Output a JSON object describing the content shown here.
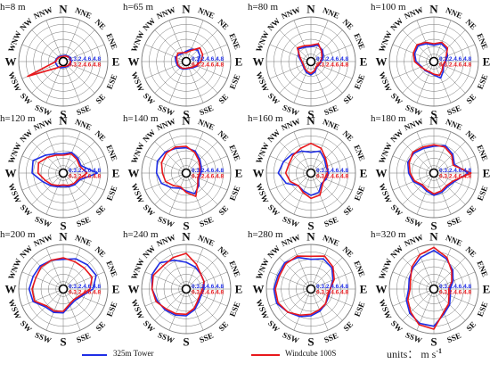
{
  "directions": [
    "N",
    "NNE",
    "NE",
    "ENE",
    "E",
    "ESE",
    "SE",
    "SSE",
    "S",
    "SSW",
    "SW",
    "WSW",
    "W",
    "WNW",
    "NW",
    "NNW"
  ],
  "ring_label": "0.3.2.4.6.4.8",
  "legend": {
    "items": [
      {
        "label": "325m Tower",
        "color": "#1f2ee6"
      },
      {
        "label": "Windcube 100S",
        "color": "#e8181c"
      }
    ],
    "units_label": "units： m s",
    "units_sup": "-1"
  },
  "colors": {
    "tower": "#1f2ee6",
    "windcube": "#e8181c",
    "grid": "#777777"
  },
  "chart_data": [
    {
      "type": "radar",
      "title": "h=8 m",
      "categories": [
        "N",
        "NNE",
        "NE",
        "ENE",
        "E",
        "ESE",
        "SE",
        "SSE",
        "S",
        "SSW",
        "SW",
        "WSW",
        "W",
        "WNW",
        "NW",
        "NNW"
      ],
      "series": [
        {
          "name": "325m Tower",
          "values": [
            0.8,
            0.9,
            1.0,
            1.1,
            1.1,
            1.0,
            0.9,
            0.8,
            0.8,
            0.9,
            1.0,
            1.0,
            1.1,
            1.0,
            0.9,
            0.8
          ]
        },
        {
          "name": "Windcube 100S",
          "values": [
            0.7,
            0.8,
            0.9,
            1.0,
            1.0,
            0.9,
            0.8,
            0.7,
            0.6,
            0.7,
            1.2,
            5.2,
            1.0,
            0.9,
            0.8,
            0.7
          ]
        }
      ],
      "rmax": 6
    },
    {
      "type": "radar",
      "title": "h=65 m",
      "categories": [
        "N",
        "NNE",
        "NE",
        "ENE",
        "E",
        "ESE",
        "SE",
        "SSE",
        "S",
        "SSW",
        "SW",
        "WSW",
        "W",
        "WNW",
        "NW",
        "NNW"
      ],
      "series": [
        {
          "name": "325m Tower",
          "values": [
            1.4,
            1.8,
            2.2,
            2.0,
            1.6,
            1.6,
            1.2,
            1.0,
            1.0,
            1.1,
            1.2,
            1.3,
            1.4,
            1.6,
            1.3,
            1.2
          ]
        },
        {
          "name": "Windcube 100S",
          "values": [
            1.2,
            1.6,
            2.6,
            2.4,
            2.0,
            1.4,
            1.1,
            0.9,
            0.9,
            1.0,
            1.1,
            1.2,
            1.2,
            1.4,
            1.6,
            1.3
          ]
        }
      ],
      "rmax": 6
    },
    {
      "type": "radar",
      "title": "h=80 m",
      "categories": [
        "N",
        "NNE",
        "NE",
        "ENE",
        "E",
        "ESE",
        "SE",
        "SSE",
        "S",
        "SSW",
        "SW",
        "WSW",
        "W",
        "WNW",
        "NW",
        "NNW"
      ],
      "series": [
        {
          "name": "325m Tower",
          "values": [
            2.0,
            2.4,
            2.2,
            1.8,
            1.4,
            1.2,
            1.1,
            1.5,
            1.8,
            1.6,
            1.3,
            1.2,
            1.3,
            1.8,
            2.4,
            2.1
          ]
        },
        {
          "name": "Windcube 100S",
          "values": [
            2.2,
            2.6,
            2.0,
            1.6,
            1.3,
            1.1,
            1.0,
            1.3,
            1.6,
            1.4,
            1.2,
            1.1,
            1.2,
            1.6,
            2.6,
            2.3
          ]
        }
      ],
      "rmax": 6
    },
    {
      "type": "radar",
      "title": "h=100 m",
      "categories": [
        "N",
        "NNE",
        "NE",
        "ENE",
        "E",
        "ESE",
        "SE",
        "SSE",
        "S",
        "SSW",
        "SW",
        "WSW",
        "W",
        "WNW",
        "NW",
        "NNW"
      ],
      "series": [
        {
          "name": "325m Tower",
          "values": [
            2.2,
            2.6,
            2.4,
            2.0,
            1.6,
            1.4,
            1.8,
            2.4,
            1.8,
            1.6,
            1.7,
            1.8,
            2.4,
            2.8,
            3.0,
            2.6
          ]
        },
        {
          "name": "Windcube 100S",
          "values": [
            2.4,
            2.8,
            2.6,
            1.8,
            1.5,
            1.3,
            1.6,
            2.0,
            1.7,
            1.5,
            1.6,
            1.9,
            2.6,
            3.0,
            3.2,
            2.8
          ]
        }
      ],
      "rmax": 6
    },
    {
      "type": "radar",
      "title": "h=120 m",
      "categories": [
        "N",
        "NNE",
        "NE",
        "ENE",
        "E",
        "ESE",
        "SE",
        "SSE",
        "S",
        "SSW",
        "SW",
        "WSW",
        "W",
        "WNW",
        "NW",
        "NNW"
      ],
      "series": [
        {
          "name": "325m Tower",
          "values": [
            2.6,
            3.0,
            2.8,
            2.6,
            4.6,
            2.4,
            2.2,
            2.0,
            1.8,
            2.0,
            2.4,
            3.0,
            4.2,
            4.4,
            3.4,
            2.8
          ]
        },
        {
          "name": "Windcube 100S",
          "values": [
            2.4,
            2.8,
            2.6,
            2.4,
            3.2,
            2.2,
            2.0,
            1.8,
            1.6,
            1.8,
            2.2,
            2.6,
            3.4,
            3.6,
            3.0,
            2.6
          ]
        }
      ],
      "rmax": 6
    },
    {
      "type": "radar",
      "title": "h=140 m",
      "categories": [
        "N",
        "NNE",
        "NE",
        "ENE",
        "E",
        "ESE",
        "SE",
        "SSE",
        "S",
        "SSW",
        "SW",
        "WSW",
        "W",
        "WNW",
        "NW",
        "NNW"
      ],
      "series": [
        {
          "name": "325m Tower",
          "values": [
            3.4,
            3.2,
            2.6,
            2.2,
            2.0,
            1.8,
            2.4,
            3.0,
            2.4,
            2.2,
            2.8,
            3.6,
            4.0,
            4.2,
            4.0,
            3.6
          ]
        },
        {
          "name": "Windcube 100S",
          "values": [
            3.6,
            3.0,
            2.4,
            2.0,
            1.8,
            1.7,
            2.2,
            3.4,
            2.6,
            2.0,
            2.4,
            3.0,
            3.2,
            3.6,
            3.8,
            3.8
          ]
        }
      ],
      "rmax": 6
    },
    {
      "type": "radar",
      "title": "h=160 m",
      "categories": [
        "N",
        "NNE",
        "NE",
        "ENE",
        "E",
        "ESE",
        "SE",
        "SSE",
        "S",
        "SSW",
        "SW",
        "WSW",
        "W",
        "WNW",
        "NW",
        "NNW"
      ],
      "series": [
        {
          "name": "325m Tower",
          "values": [
            2.8,
            3.2,
            2.6,
            2.2,
            2.4,
            2.2,
            2.0,
            2.8,
            3.0,
            2.6,
            2.4,
            3.6,
            4.4,
            4.0,
            3.6,
            3.2
          ]
        },
        {
          "name": "Windcube 100S",
          "values": [
            4.0,
            3.6,
            2.8,
            2.4,
            2.2,
            2.0,
            2.2,
            3.2,
            3.4,
            2.8,
            2.4,
            3.0,
            3.4,
            3.2,
            3.4,
            3.6
          ]
        }
      ],
      "rmax": 6
    },
    {
      "type": "radar",
      "title": "h=180 m",
      "categories": [
        "N",
        "NNE",
        "NE",
        "ENE",
        "E",
        "ESE",
        "SE",
        "SSE",
        "S",
        "SSW",
        "SW",
        "WSW",
        "W",
        "WNW",
        "NW",
        "NNW"
      ],
      "series": [
        {
          "name": "325m Tower",
          "values": [
            3.6,
            4.0,
            3.6,
            3.0,
            4.6,
            3.0,
            2.6,
            2.8,
            3.0,
            2.6,
            2.4,
            3.0,
            3.4,
            3.8,
            3.8,
            3.6
          ]
        },
        {
          "name": "Windcube 100S",
          "values": [
            3.8,
            3.8,
            3.4,
            2.8,
            5.0,
            2.8,
            2.4,
            2.6,
            2.8,
            2.4,
            2.2,
            2.8,
            3.2,
            3.6,
            4.0,
            3.8
          ]
        }
      ],
      "rmax": 6
    },
    {
      "type": "radar",
      "title": "h=200 m",
      "categories": [
        "N",
        "NNE",
        "NE",
        "ENE",
        "E",
        "ESE",
        "SE",
        "SSE",
        "S",
        "SSW",
        "SW",
        "WSW",
        "W",
        "WNW",
        "NW",
        "NNW"
      ],
      "series": [
        {
          "name": "325m Tower",
          "values": [
            4.0,
            4.4,
            4.6,
            4.8,
            4.0,
            2.6,
            2.2,
            2.4,
            3.2,
            3.4,
            3.4,
            4.4,
            4.6,
            4.4,
            4.4,
            4.2
          ]
        },
        {
          "name": "Windcube 100S",
          "values": [
            4.2,
            4.0,
            4.0,
            4.2,
            3.6,
            2.4,
            2.0,
            2.2,
            3.0,
            3.2,
            3.2,
            4.2,
            4.2,
            4.0,
            4.2,
            4.2
          ]
        }
      ],
      "rmax": 6
    },
    {
      "type": "radar",
      "title": "h=240 m",
      "categories": [
        "N",
        "NNE",
        "NE",
        "ENE",
        "E",
        "ESE",
        "SE",
        "SSE",
        "S",
        "SSW",
        "SW",
        "WSW",
        "W",
        "WNW",
        "NW",
        "NNW"
      ],
      "series": [
        {
          "name": "325m Tower",
          "values": [
            3.6,
            3.2,
            2.8,
            2.6,
            2.4,
            2.2,
            2.4,
            3.0,
            3.6,
            3.8,
            4.0,
            4.2,
            4.6,
            5.0,
            5.0,
            4.2
          ]
        },
        {
          "name": "Windcube 100S",
          "values": [
            4.8,
            3.6,
            2.8,
            2.6,
            2.2,
            2.0,
            2.2,
            2.8,
            3.4,
            3.6,
            3.8,
            4.4,
            4.6,
            4.8,
            4.4,
            4.6
          ]
        }
      ],
      "rmax": 6
    },
    {
      "type": "radar",
      "title": "h=280 m",
      "categories": [
        "N",
        "NNE",
        "NE",
        "ENE",
        "E",
        "ESE",
        "SE",
        "SSE",
        "S",
        "SSW",
        "SW",
        "WSW",
        "W",
        "WNW",
        "NW",
        "NNW"
      ],
      "series": [
        {
          "name": "325m Tower",
          "values": [
            4.0,
            4.4,
            4.0,
            3.2,
            2.6,
            2.6,
            2.8,
            3.2,
            3.6,
            4.0,
            4.4,
            5.0,
            5.0,
            4.8,
            5.0,
            4.6
          ]
        },
        {
          "name": "Windcube 100S",
          "values": [
            4.4,
            4.8,
            4.2,
            3.4,
            2.6,
            2.4,
            2.8,
            3.0,
            3.4,
            3.8,
            4.4,
            4.8,
            4.8,
            4.6,
            4.8,
            4.8
          ]
        }
      ],
      "rmax": 6
    },
    {
      "type": "radar",
      "title": "h=320 m",
      "categories": [
        "N",
        "NNE",
        "NE",
        "ENE",
        "E",
        "ESE",
        "SE",
        "SSE",
        "S",
        "SSW",
        "SW",
        "WSW",
        "W",
        "WNW",
        "NW",
        "NNW"
      ],
      "series": [
        {
          "name": "325m Tower",
          "values": [
            5.2,
            4.4,
            3.6,
            2.8,
            2.2,
            2.4,
            3.0,
            3.6,
            5.0,
            5.0,
            4.6,
            4.0,
            3.4,
            3.6,
            4.0,
            4.6
          ]
        },
        {
          "name": "Windcube 100S",
          "values": [
            5.6,
            4.6,
            3.4,
            2.6,
            2.0,
            2.2,
            2.8,
            3.4,
            5.4,
            5.2,
            4.4,
            3.8,
            3.2,
            3.4,
            4.2,
            5.0
          ]
        }
      ],
      "rmax": 6
    }
  ]
}
